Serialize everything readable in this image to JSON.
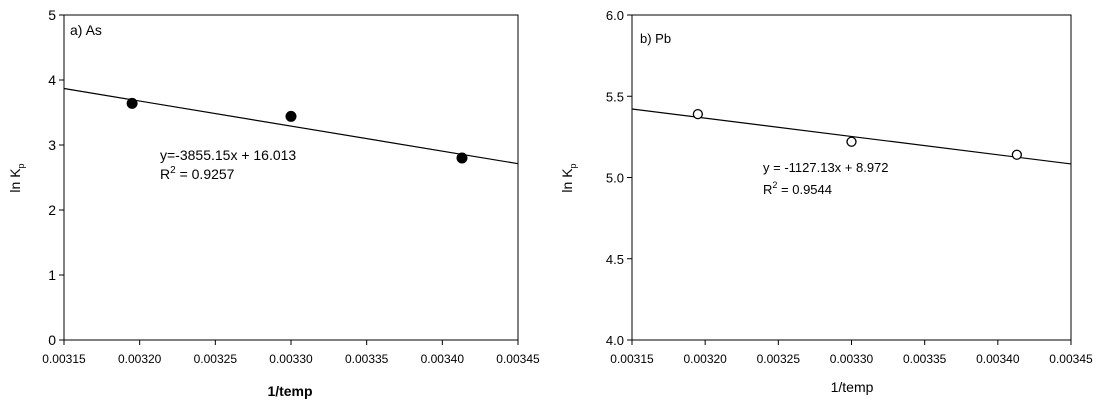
{
  "chart_data": [
    {
      "type": "scatter",
      "panel_label": "a) As",
      "xlabel": "1/temp",
      "ylabel": "ln K",
      "ylabel_sub": "p",
      "xlim": [
        0.00315,
        0.00345
      ],
      "ylim": [
        0,
        5
      ],
      "xticks": [
        "0.00315",
        "0.00320",
        "0.00325",
        "0.00330",
        "0.00335",
        "0.00340",
        "0.00345"
      ],
      "yticks": [
        "0",
        "1",
        "2",
        "3",
        "4",
        "5"
      ],
      "points": [
        {
          "x": 0.003195,
          "y": 3.64
        },
        {
          "x": 0.0033,
          "y": 3.44
        },
        {
          "x": 0.003413,
          "y": 2.8
        }
      ],
      "marker": "filled",
      "trendline": {
        "slope": -3855.15,
        "intercept": 16.013
      },
      "equation": "y=-3855.15x + 16.013",
      "r2_prefix": "R",
      "r2_value": " = 0.9257",
      "axis_label_bold": true
    },
    {
      "type": "scatter",
      "panel_label": "b) Pb",
      "xlabel": "1/temp",
      "ylabel": "ln K",
      "ylabel_sub": "p",
      "xlim": [
        0.00315,
        0.00345
      ],
      "ylim": [
        4.0,
        6.0
      ],
      "xticks": [
        "0.00315",
        "0.00320",
        "0.00325",
        "0.00330",
        "0.00335",
        "0.00340",
        "0.00345"
      ],
      "yticks": [
        "4.0",
        "4.5",
        "5.0",
        "5.5",
        "6.0"
      ],
      "points": [
        {
          "x": 0.003195,
          "y": 5.39
        },
        {
          "x": 0.0033,
          "y": 5.22
        },
        {
          "x": 0.003413,
          "y": 5.14
        }
      ],
      "marker": "open",
      "trendline": {
        "slope": -1127.13,
        "intercept": 8.972
      },
      "equation": "y = -1127.13x + 8.972",
      "r2_prefix": "R",
      "r2_value": " = 0.9544",
      "axis_label_bold": false
    }
  ]
}
